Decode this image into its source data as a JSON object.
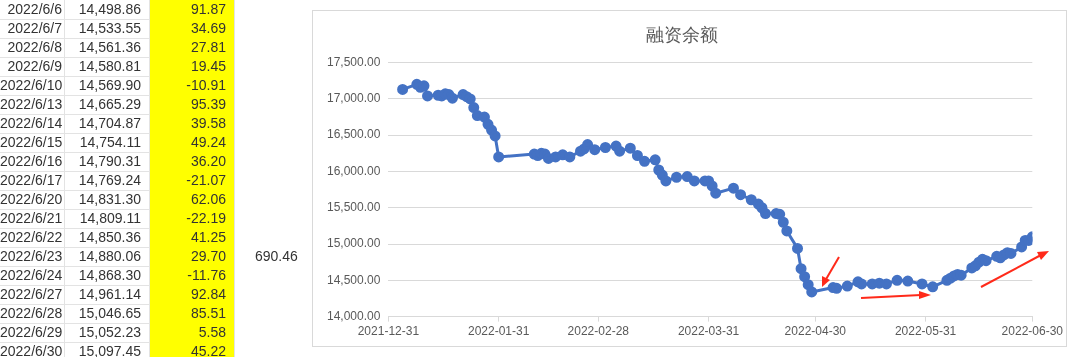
{
  "chart_data": [
    {
      "type": "other",
      "categories": [
        "2022/6/6",
        "2022/6/7",
        "2022/6/8",
        "2022/6/9",
        "2022/6/10",
        "2022/6/13",
        "2022/6/14",
        "2022/6/15",
        "2022/6/16",
        "2022/6/17",
        "2022/6/20",
        "2022/6/21",
        "2022/6/22",
        "2022/6/23",
        "2022/6/24",
        "2022/6/27",
        "2022/6/28",
        "2022/6/29",
        "2022/6/30"
      ],
      "series": [
        {
          "values": [
            14498.86,
            14533.55,
            14561.36,
            14580.81,
            14569.9,
            14665.29,
            14704.87,
            14754.11,
            14790.31,
            14769.24,
            14831.3,
            14809.11,
            14850.36,
            14880.06,
            14868.3,
            14961.14,
            15046.65,
            15052.23,
            15097.45
          ],
          "value_labels": [
            "14,498.86",
            "14,533.55",
            "14,561.36",
            "14,580.81",
            "14,569.90",
            "14,665.29",
            "14,704.87",
            "14,754.11",
            "14,790.31",
            "14,769.24",
            "14,831.30",
            "14,809.11",
            "14,850.36",
            "14,880.06",
            "14,868.30",
            "14,961.14",
            "15,046.65",
            "15,052.23",
            "15,097.45"
          ]
        },
        {
          "color": "#ffff00",
          "values": [
            91.87,
            34.69,
            27.81,
            19.45,
            -10.91,
            95.39,
            39.58,
            49.24,
            36.2,
            -21.07,
            62.06,
            -22.19,
            41.25,
            29.7,
            -11.76,
            92.84,
            85.51,
            5.58,
            45.22
          ],
          "value_labels": [
            "91.87",
            "34.69",
            "27.81",
            "19.45",
            "-10.91",
            "95.39",
            "39.58",
            "49.24",
            "36.20",
            "-21.07",
            "62.06",
            "-22.19",
            "41.25",
            "29.70",
            "-11.76",
            "92.84",
            "85.51",
            "5.58",
            "45.22"
          ]
        }
      ],
      "annotations": [
        "690.46"
      ]
    },
    {
      "type": "line",
      "title": "融资余额",
      "x": [
        "2022-01-04",
        "2022-01-08",
        "2022-01-09",
        "2022-01-10",
        "2022-01-11",
        "2022-01-14",
        "2022-01-15",
        "2022-01-16",
        "2022-01-17",
        "2022-01-18",
        "2022-01-21",
        "2022-01-22",
        "2022-01-23",
        "2022-01-24",
        "2022-01-25",
        "2022-01-27",
        "2022-01-28",
        "2022-01-29",
        "2022-01-30",
        "2022-01-31",
        "2022-02-10",
        "2022-02-11",
        "2022-02-12",
        "2022-02-13",
        "2022-02-14",
        "2022-02-16",
        "2022-02-18",
        "2022-02-20",
        "2022-02-23",
        "2022-02-24",
        "2022-02-25",
        "2022-02-27",
        "2022-03-02",
        "2022-03-05",
        "2022-03-06",
        "2022-03-09",
        "2022-03-11",
        "2022-03-13",
        "2022-03-16",
        "2022-03-17",
        "2022-03-18",
        "2022-03-19",
        "2022-03-22",
        "2022-03-25",
        "2022-03-27",
        "2022-03-30",
        "2022-03-31",
        "2022-04-01",
        "2022-04-02",
        "2022-04-07",
        "2022-04-09",
        "2022-04-12",
        "2022-04-14",
        "2022-04-15",
        "2022-04-16",
        "2022-04-19",
        "2022-04-20",
        "2022-04-21",
        "2022-04-22",
        "2022-04-25",
        "2022-04-26",
        "2022-04-27",
        "2022-04-28",
        "2022-04-29",
        "2022-05-05",
        "2022-05-06",
        "2022-05-09",
        "2022-05-12",
        "2022-05-13",
        "2022-05-16",
        "2022-05-18",
        "2022-05-20",
        "2022-05-23",
        "2022-05-26",
        "2022-05-30",
        "2022-06-02",
        "2022-06-06",
        "2022-06-07",
        "2022-06-08",
        "2022-06-09",
        "2022-06-10",
        "2022-06-13",
        "2022-06-14",
        "2022-06-15",
        "2022-06-16",
        "2022-06-17",
        "2022-06-20",
        "2022-06-21",
        "2022-06-22",
        "2022-06-23",
        "2022-06-24",
        "2022-06-27",
        "2022-06-28",
        "2022-06-29",
        "2022-06-30"
      ],
      "series": [
        {
          "color": "#4472c4",
          "values": [
            17130,
            17200,
            17160,
            17180,
            17040,
            17050,
            17040,
            17070,
            17060,
            17010,
            17060,
            17030,
            17000,
            16880,
            16770,
            16750,
            16650,
            16570,
            16490,
            16200,
            16240,
            16220,
            16250,
            16240,
            16180,
            16200,
            16230,
            16200,
            16280,
            16310,
            16370,
            16300,
            16330,
            16350,
            16280,
            16320,
            16220,
            16140,
            16160,
            16020,
            15950,
            15870,
            15920,
            15930,
            15870,
            15870,
            15870,
            15800,
            15700,
            15770,
            15680,
            15610,
            15550,
            15500,
            15420,
            15420,
            15410,
            15300,
            15180,
            14940,
            14660,
            14550,
            14440,
            14340,
            14400,
            14390,
            14420,
            14480,
            14450,
            14450,
            14460,
            14450,
            14500,
            14490,
            14450,
            14410,
            14500,
            14530,
            14560,
            14580,
            14570,
            14670,
            14700,
            14750,
            14790,
            14770,
            14830,
            14810,
            14850,
            14880,
            14870,
            14960,
            15050,
            15050,
            15100
          ]
        }
      ],
      "xlim": [
        "2021-12-31",
        "2022-06-30"
      ],
      "xticks": [
        "2021-12-31",
        "2022-01-31",
        "2022-02-28",
        "2022-03-31",
        "2022-04-30",
        "2022-05-31",
        "2022-06-30"
      ],
      "ylim": [
        14000,
        17500
      ],
      "yticks": [
        {
          "value": 14000,
          "label": "14,000.00"
        },
        {
          "value": 14500,
          "label": "14,500.00"
        },
        {
          "value": 15000,
          "label": "15,000.00"
        },
        {
          "value": 15500,
          "label": "15,500.00"
        },
        {
          "value": 16000,
          "label": "16,000.00"
        },
        {
          "value": 16500,
          "label": "16,500.00"
        },
        {
          "value": 17000,
          "label": "17,000.00"
        },
        {
          "value": 17500,
          "label": "17,500.00"
        }
      ],
      "grid": "y",
      "legend": false,
      "marker": "circle",
      "line_style": "solid"
    }
  ]
}
